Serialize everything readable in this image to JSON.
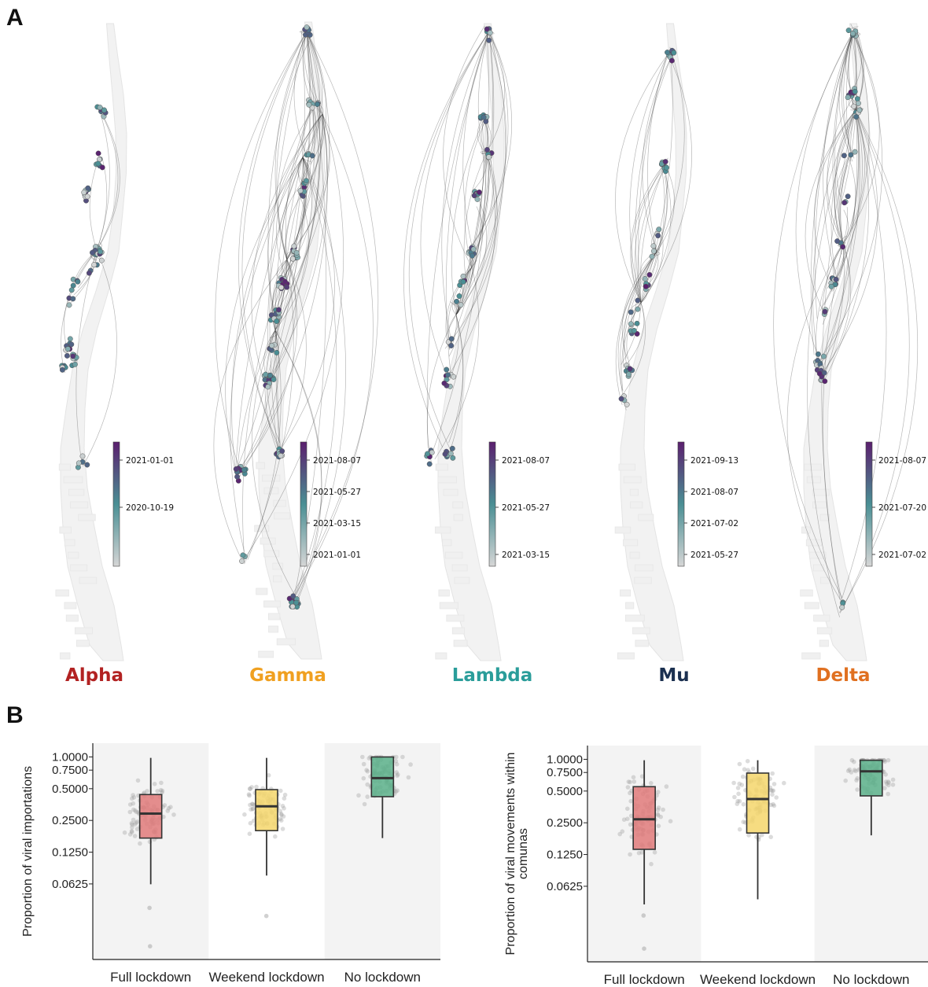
{
  "panels": {
    "a_label": "A",
    "b_label": "B"
  },
  "chart_data": [
    {
      "type": "map",
      "title": "Alpha",
      "title_color": "#b22222",
      "colorbar_ticks": [
        "2021-01-01",
        "2020-10-19"
      ],
      "colors": {
        "low": "#d6d6d6",
        "mid": "#4a8f94",
        "high": "#5b1f6e"
      }
    },
    {
      "type": "map",
      "title": "Gamma",
      "title_color": "#f0a020",
      "colorbar_ticks": [
        "2021-08-07",
        "2021-05-27",
        "2021-03-15",
        "2021-01-01"
      ],
      "colors": {
        "low": "#d6d6d6",
        "mid": "#4a8f94",
        "high": "#5b1f6e"
      }
    },
    {
      "type": "map",
      "title": "Lambda",
      "title_color": "#2a9d9a",
      "colorbar_ticks": [
        "2021-08-07",
        "2021-05-27",
        "2021-03-15"
      ],
      "colors": {
        "low": "#d6d6d6",
        "mid": "#4a8f94",
        "high": "#5b1f6e"
      }
    },
    {
      "type": "map",
      "title": "Mu",
      "title_color": "#1b3050",
      "colorbar_ticks": [
        "2021-09-13",
        "2021-08-07",
        "2021-07-02",
        "2021-05-27"
      ],
      "colors": {
        "low": "#d6d6d6",
        "mid": "#4a8f94",
        "high": "#5b1f6e"
      }
    },
    {
      "type": "map",
      "title": "Delta",
      "title_color": "#e07020",
      "colorbar_ticks": [
        "2021-08-07",
        "2021-07-20",
        "2021-07-02"
      ],
      "colors": {
        "low": "#d6d6d6",
        "mid": "#4a8f94",
        "high": "#5b1f6e"
      }
    },
    {
      "type": "box",
      "ylabel": "Proportion of viral importations",
      "yscale": "log2",
      "ylim": [
        0.012,
        1.35
      ],
      "yticks": [
        "1.0000",
        "0.7500",
        "0.5000",
        "0.2500",
        "0.1250",
        "0.0625"
      ],
      "categories": [
        "Full lockdown",
        "Weekend lockdown",
        "No lockdown"
      ],
      "boxes": [
        {
          "whisker_low": 0.062,
          "q1": 0.17,
          "median": 0.29,
          "q3": 0.44,
          "whisker_high": 0.98,
          "color": "#e07a7a"
        },
        {
          "whisker_low": 0.075,
          "q1": 0.2,
          "median": 0.34,
          "q3": 0.49,
          "whisker_high": 0.98,
          "color": "#f5d66b"
        },
        {
          "whisker_low": 0.17,
          "q1": 0.42,
          "median": 0.63,
          "q3": 1.0,
          "whisker_high": 1.0,
          "color": "#5bb08a"
        }
      ],
      "outliers": [
        [
          0,
          0.016
        ],
        [
          0,
          0.037
        ],
        [
          1,
          0.031
        ]
      ]
    },
    {
      "type": "box",
      "ylabel": "Proportion of viral movements within comunas",
      "yscale": "log2",
      "ylim": [
        0.012,
        1.35
      ],
      "yticks": [
        "1.0000",
        "0.7500",
        "0.5000",
        "0.2500",
        "0.1250",
        "0.0625"
      ],
      "categories": [
        "Full lockdown",
        "Weekend lockdown",
        "No lockdown"
      ],
      "boxes": [
        {
          "whisker_low": 0.042,
          "q1": 0.14,
          "median": 0.27,
          "q3": 0.55,
          "whisker_high": 0.98,
          "color": "#e07a7a"
        },
        {
          "whisker_low": 0.047,
          "q1": 0.2,
          "median": 0.42,
          "q3": 0.74,
          "whisker_high": 0.98,
          "color": "#f5d66b"
        },
        {
          "whisker_low": 0.19,
          "q1": 0.45,
          "median": 0.77,
          "q3": 0.98,
          "whisker_high": 0.98,
          "color": "#5bb08a"
        }
      ],
      "outliers": [
        [
          0,
          0.016
        ],
        [
          0,
          0.033
        ]
      ]
    }
  ]
}
